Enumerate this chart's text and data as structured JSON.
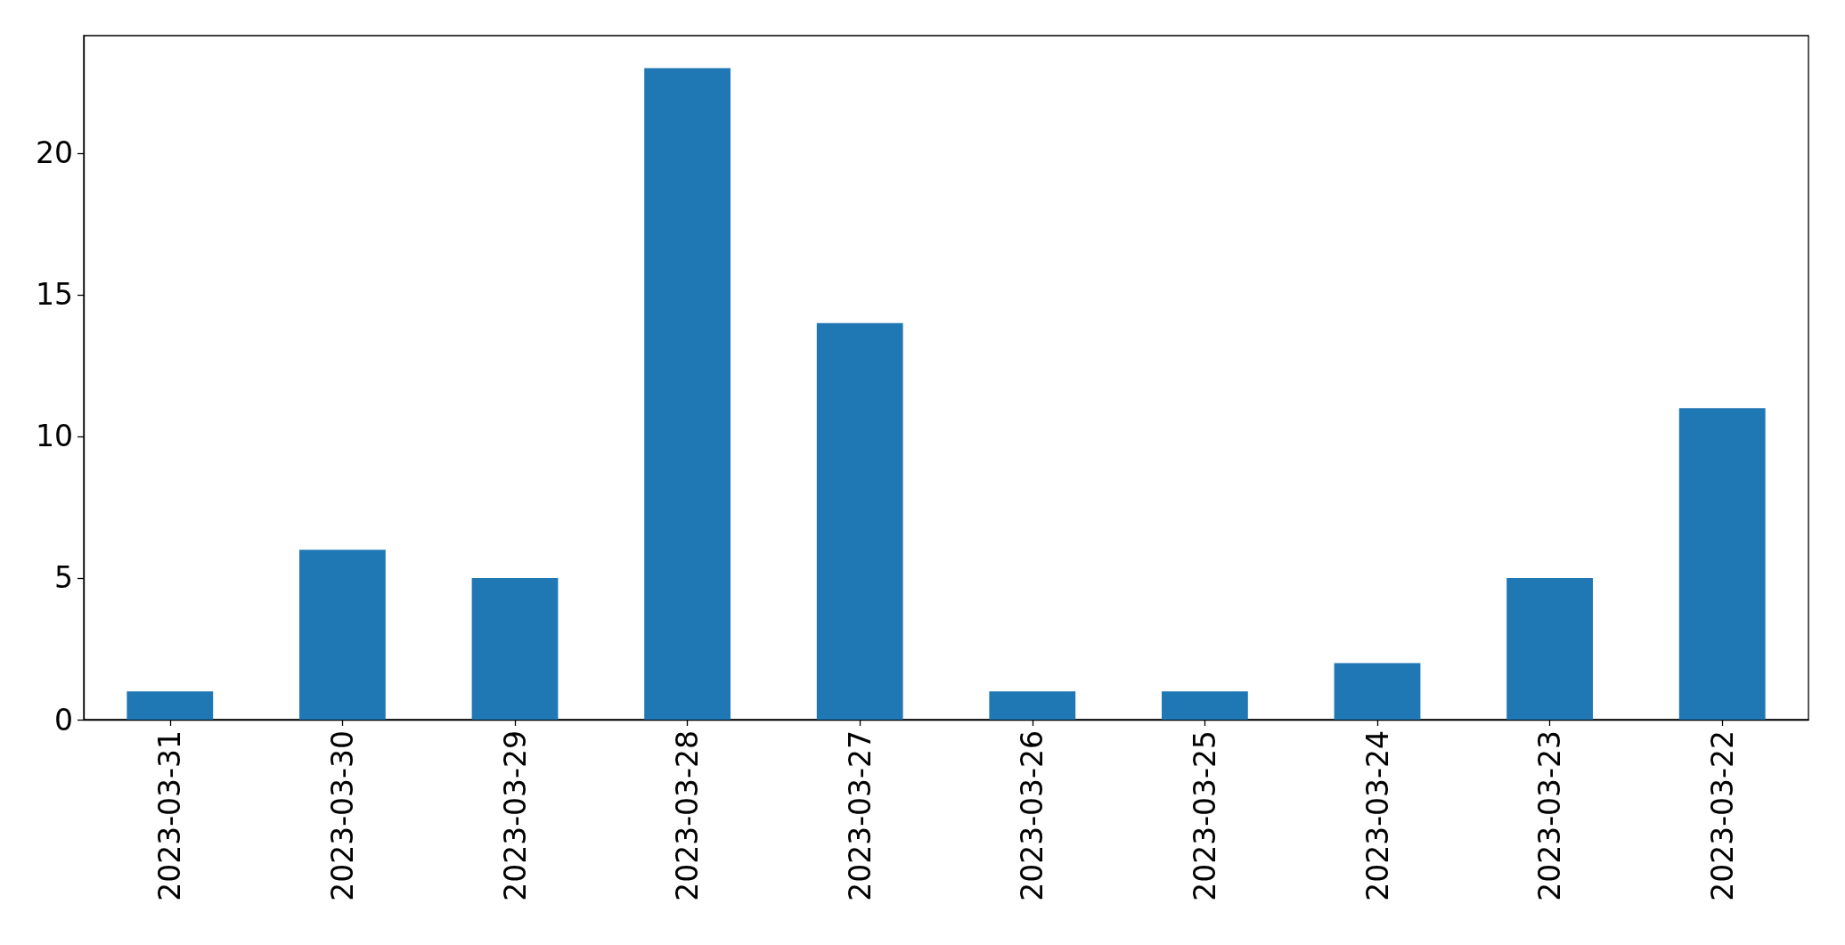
{
  "chart_data": {
    "type": "bar",
    "categories": [
      "2023-03-31",
      "2023-03-30",
      "2023-03-29",
      "2023-03-28",
      "2023-03-27",
      "2023-03-26",
      "2023-03-25",
      "2023-03-24",
      "2023-03-23",
      "2023-03-22"
    ],
    "values": [
      1,
      6,
      5,
      23,
      14,
      1,
      1,
      2,
      5,
      11
    ],
    "color": "#1f77b4",
    "ylim": [
      0,
      24.15
    ],
    "yticks": [
      0,
      5,
      10,
      15,
      20
    ]
  }
}
